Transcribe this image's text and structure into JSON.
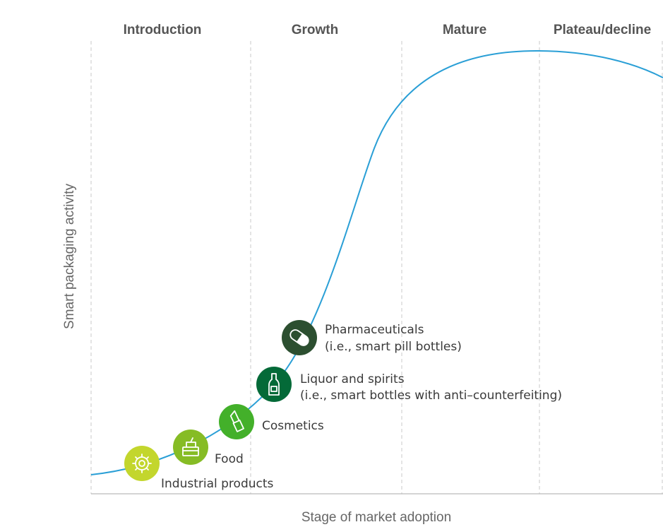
{
  "stages": [
    "Introduction",
    "Growth",
    "Mature",
    "Plateau/decline"
  ],
  "y_axis_label": "Smart packaging activity",
  "x_axis_label": "Stage of market adoption",
  "items": [
    {
      "label": [
        "Industrial products"
      ],
      "icon": "gear-icon",
      "color": "#C3D62D"
    },
    {
      "label": [
        "Food"
      ],
      "icon": "food-container-icon",
      "color": "#86BC25"
    },
    {
      "label": [
        "Cosmetics"
      ],
      "icon": "lipstick-icon",
      "color": "#43B02A"
    },
    {
      "label": [
        "Liquor and spirits",
        "(i.e., smart bottles with anti–counterfeiting)"
      ],
      "icon": "bottle-icon",
      "color": "#046A38"
    },
    {
      "label": [
        "Pharmaceuticals",
        "(i.e., smart pill bottles)"
      ],
      "icon": "pill-icon",
      "color": "#2C4F30"
    }
  ],
  "colors": {
    "curve": "#2A9FD6",
    "gridline": "#C8C8C8",
    "axis": "#BBBBBB"
  }
}
